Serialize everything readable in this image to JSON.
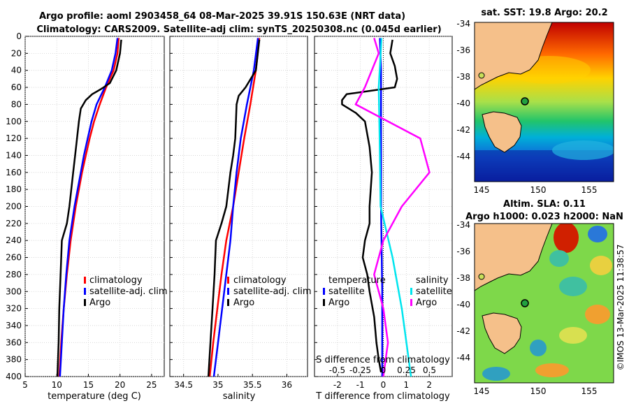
{
  "header": {
    "title_line1": "Argo profile: aoml 2903458_64 08-Mar-2025 39.91S 150.63E (NRT data)",
    "title_line2": "Climatology: CARS2009. Satellite-adj clim: synTS_20250308.nc (0.045d earlier)"
  },
  "colors": {
    "climatology": "#ff0000",
    "satellite": "#0000ff",
    "argo": "#000000",
    "sal_sat": "#00e5ee",
    "sal_argo": "#ff00ff"
  },
  "chart_data": [
    {
      "id": "temperature",
      "type": "line",
      "xlabel": "temperature (deg C)",
      "xlim": [
        5,
        27
      ],
      "xticks": [
        5,
        10,
        15,
        20,
        25
      ],
      "xtick_labels": [
        "5",
        "10",
        "15",
        "20",
        "25"
      ],
      "ylim": [
        0,
        400
      ],
      "yticks": [
        0,
        20,
        40,
        60,
        80,
        100,
        120,
        140,
        160,
        180,
        200,
        220,
        240,
        260,
        280,
        300,
        320,
        340,
        360,
        380,
        400
      ],
      "ytick_labels": [
        "0",
        "20",
        "40",
        "60",
        "80",
        "100",
        "120",
        "140",
        "160",
        "180",
        "200",
        "220",
        "240",
        "260",
        "280",
        "300",
        "320",
        "340",
        "360",
        "380",
        "400"
      ],
      "legend": [
        "climatology",
        "satellite-adj. clim",
        "Argo"
      ],
      "series": [
        {
          "name": "climatology",
          "color": "#ff0000",
          "depth": [
            2,
            20,
            40,
            60,
            80,
            100,
            120,
            140,
            160,
            200,
            240,
            280,
            320,
            360,
            400
          ],
          "values": [
            19.8,
            19.6,
            19.0,
            17.8,
            16.8,
            15.9,
            15.2,
            14.6,
            14.0,
            13.0,
            12.2,
            11.6,
            11.1,
            10.7,
            10.4
          ]
        },
        {
          "name": "satellite-adj. clim",
          "color": "#0000ff",
          "depth": [
            2,
            20,
            40,
            60,
            80,
            100,
            120,
            140,
            160,
            200,
            240,
            280,
            320,
            360,
            400
          ],
          "values": [
            19.6,
            19.3,
            18.7,
            17.6,
            16.3,
            15.5,
            14.9,
            14.3,
            13.8,
            12.8,
            12.0,
            11.5,
            11.1,
            10.8,
            10.5
          ]
        },
        {
          "name": "Argo",
          "color": "#000000",
          "depth": [
            4,
            20,
            40,
            55,
            62,
            68,
            75,
            85,
            100,
            120,
            140,
            160,
            200,
            220,
            240,
            280,
            320,
            360,
            400
          ],
          "values": [
            20.2,
            20.0,
            19.4,
            18.4,
            17.0,
            15.6,
            14.6,
            13.8,
            13.5,
            13.2,
            12.9,
            12.6,
            12.0,
            11.6,
            10.8,
            10.6,
            10.4,
            10.3,
            10.1
          ]
        }
      ]
    },
    {
      "id": "salinity",
      "type": "line",
      "xlabel": "salinity",
      "xlim": [
        34.3,
        36.3
      ],
      "xticks": [
        34.5,
        35,
        35.5,
        36
      ],
      "xtick_labels": [
        "34.5",
        "35",
        "35.5",
        "36"
      ],
      "ylim": [
        0,
        400
      ],
      "legend": [
        "climatology",
        "satellite-adj. clim",
        "Argo"
      ],
      "series": [
        {
          "name": "climatology",
          "color": "#ff0000",
          "depth": [
            2,
            40,
            80,
            120,
            160,
            200,
            240,
            280,
            320,
            360,
            400
          ],
          "values": [
            35.6,
            35.55,
            35.47,
            35.38,
            35.3,
            35.22,
            35.12,
            35.05,
            34.99,
            34.93,
            34.88
          ]
        },
        {
          "name": "satellite-adj. clim",
          "color": "#0000ff",
          "depth": [
            2,
            40,
            80,
            120,
            160,
            200,
            240,
            280,
            320,
            360,
            400
          ],
          "values": [
            35.58,
            35.52,
            35.42,
            35.33,
            35.27,
            35.22,
            35.18,
            35.12,
            35.06,
            35.0,
            34.94
          ]
        },
        {
          "name": "Argo",
          "color": "#000000",
          "depth": [
            4,
            40,
            60,
            70,
            80,
            100,
            120,
            140,
            160,
            200,
            220,
            240,
            280,
            320,
            360,
            400
          ],
          "values": [
            35.6,
            35.55,
            35.4,
            35.3,
            35.27,
            35.26,
            35.25,
            35.22,
            35.18,
            35.12,
            35.05,
            34.97,
            34.95,
            34.92,
            34.89,
            34.86
          ]
        }
      ]
    },
    {
      "id": "difference",
      "type": "line",
      "xlabel": "T difference from climatology",
      "xlabel_top": "S difference from climatology",
      "xlim": [
        -3,
        3
      ],
      "xticks": [
        -2,
        -1,
        0,
        1,
        2
      ],
      "xtick_labels": [
        "-2",
        "-1",
        "0",
        "1",
        "2"
      ],
      "top_ticks": [
        -0.5,
        -0.25,
        0,
        0.25,
        0.5
      ],
      "top_tick_labels": [
        "-0.5",
        "-0.25",
        "0",
        "0.25",
        "0.5"
      ],
      "ylim": [
        0,
        400
      ],
      "legend_temperature": [
        "temperature",
        "satellite",
        "Argo"
      ],
      "legend_salinity": [
        "salinity",
        "satellite",
        "Argo"
      ],
      "series": [
        {
          "name": "temperature satellite",
          "color": "#0000ff",
          "depth": [
            2,
            40,
            100,
            200,
            300,
            400
          ],
          "values": [
            -0.15,
            -0.1,
            -0.1,
            -0.1,
            -0.05,
            -0.05
          ]
        },
        {
          "name": "temperature Argo",
          "color": "#000000",
          "depth": [
            4,
            20,
            35,
            50,
            60,
            68,
            75,
            80,
            90,
            100,
            130,
            160,
            200,
            220,
            240,
            260,
            280,
            300,
            330,
            360,
            380,
            395
          ],
          "values": [
            0.4,
            0.3,
            0.5,
            0.6,
            0.5,
            -1.6,
            -1.8,
            -1.8,
            -1.2,
            -0.8,
            -0.6,
            -0.5,
            -0.6,
            -0.6,
            -0.8,
            -0.9,
            -0.7,
            -0.6,
            -0.4,
            -0.3,
            -0.2,
            -0.1
          ]
        },
        {
          "name": "salinity satellite",
          "color": "#00e5ee",
          "depth": [
            2,
            60,
            120,
            200,
            260,
            320,
            400
          ],
          "values": [
            -0.02,
            -0.05,
            -0.04,
            -0.03,
            0.1,
            0.2,
            0.3
          ]
        },
        {
          "name": "salinity Argo",
          "color": "#ff00ff",
          "depth": [
            2,
            20,
            60,
            80,
            120,
            160,
            200,
            240,
            280,
            320,
            360,
            400
          ],
          "values": [
            -0.1,
            -0.05,
            -0.2,
            -0.3,
            0.4,
            0.5,
            0.2,
            0.0,
            -0.1,
            0.0,
            0.05,
            0.0
          ]
        }
      ]
    }
  ],
  "maps": {
    "sst": {
      "title": "sat. SST: 19.8 Argo: 20.2",
      "yticks": [
        "-34",
        "-36",
        "-38",
        "-40",
        "-42",
        "-44"
      ],
      "xticks": [
        "145",
        "150",
        "155"
      ]
    },
    "sla": {
      "title_line1": "Altim. SLA: 0.11",
      "title_line2": "Argo h1000: 0.023 h2000: NaN",
      "yticks": [
        "-34",
        "-36",
        "-38",
        "-40",
        "-42",
        "-44"
      ],
      "xticks": [
        "145",
        "150",
        "155"
      ]
    }
  },
  "credit": "©IMOS 13-Mar-2025 11:38:57"
}
